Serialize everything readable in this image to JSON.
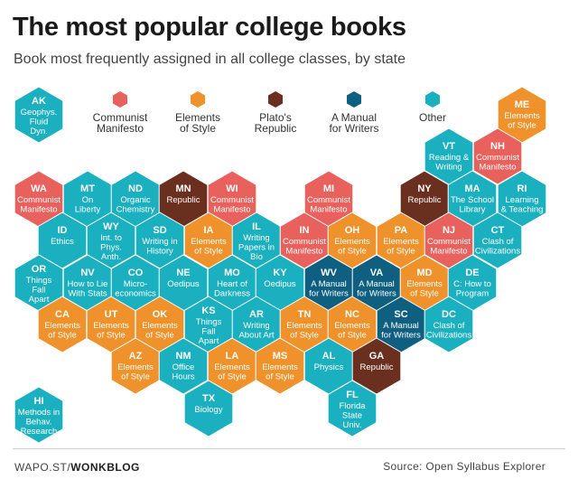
{
  "header": {
    "title": "The most popular college books",
    "subtitle": "Book most frequently assigned in all college classes, by state"
  },
  "colors": {
    "communist": "#e8615d",
    "elements": "#f0922b",
    "plato": "#6a2f1f",
    "manual": "#0f5f80",
    "other": "#1bb0bf"
  },
  "legend": [
    {
      "key": "communist",
      "label": "Communist\nManifesto"
    },
    {
      "key": "elements",
      "label": "Elements\nof Style"
    },
    {
      "key": "plato",
      "label": "Plato's\nRepublic"
    },
    {
      "key": "manual",
      "label": "A Manual\nfor Writers"
    },
    {
      "key": "other",
      "label": "Other"
    }
  ],
  "chart_data": {
    "type": "hex-tile map",
    "title": "The most popular college books",
    "subtitle": "Book most frequently assigned in all college classes, by state",
    "categories": [
      "Communist Manifesto",
      "Elements of Style",
      "Plato's Republic",
      "A Manual for Writers",
      "Other"
    ],
    "states": [
      {
        "state": "AK",
        "book": "Geophys. Fluid Dyn.",
        "category": "other"
      },
      {
        "state": "ME",
        "book": "Elements of Style",
        "category": "elements"
      },
      {
        "state": "VT",
        "book": "Reading & Writing",
        "category": "other"
      },
      {
        "state": "NH",
        "book": "Communist Manifesto",
        "category": "communist"
      },
      {
        "state": "WA",
        "book": "Communist Manifesto",
        "category": "communist"
      },
      {
        "state": "MT",
        "book": "On Liberty",
        "category": "other"
      },
      {
        "state": "ND",
        "book": "Organic Chemistry",
        "category": "other"
      },
      {
        "state": "MN",
        "book": "Republic",
        "category": "plato"
      },
      {
        "state": "WI",
        "book": "Communist Manifesto",
        "category": "communist"
      },
      {
        "state": "MI",
        "book": "Communist Manifesto",
        "category": "communist"
      },
      {
        "state": "NY",
        "book": "Republic",
        "category": "plato"
      },
      {
        "state": "MA",
        "book": "The School Library",
        "category": "other"
      },
      {
        "state": "RI",
        "book": "Learning & Teaching",
        "category": "other"
      },
      {
        "state": "ID",
        "book": "Ethics",
        "category": "other"
      },
      {
        "state": "WY",
        "book": "Int. to Phys. Anth.",
        "category": "other"
      },
      {
        "state": "SD",
        "book": "Writing in History",
        "category": "other"
      },
      {
        "state": "IA",
        "book": "Elements of Style",
        "category": "elements"
      },
      {
        "state": "IL",
        "book": "Writing Papers in Bio",
        "category": "other"
      },
      {
        "state": "IN",
        "book": "Communist Manifesto",
        "category": "communist"
      },
      {
        "state": "OH",
        "book": "Elements of Style",
        "category": "elements"
      },
      {
        "state": "PA",
        "book": "Elements of Style",
        "category": "elements"
      },
      {
        "state": "NJ",
        "book": "Communist Manifesto",
        "category": "communist"
      },
      {
        "state": "CT",
        "book": "Clash of Civilizations",
        "category": "other"
      },
      {
        "state": "OR",
        "book": "Things Fall Apart",
        "category": "other"
      },
      {
        "state": "NV",
        "book": "How to Lie With Stats",
        "category": "other"
      },
      {
        "state": "CO",
        "book": "Micro-economics",
        "category": "other"
      },
      {
        "state": "NE",
        "book": "Oedipus",
        "category": "other"
      },
      {
        "state": "MO",
        "book": "Heart of Darkness",
        "category": "other"
      },
      {
        "state": "KY",
        "book": "Oedipus",
        "category": "other"
      },
      {
        "state": "WV",
        "book": "A Manual for Writers",
        "category": "manual"
      },
      {
        "state": "VA",
        "book": "A Manual for Writers",
        "category": "manual"
      },
      {
        "state": "MD",
        "book": "Elements of Style",
        "category": "elements"
      },
      {
        "state": "DE",
        "book": "C: How to Program",
        "category": "other"
      },
      {
        "state": "CA",
        "book": "Elements of Style",
        "category": "elements"
      },
      {
        "state": "UT",
        "book": "Elements of Style",
        "category": "elements"
      },
      {
        "state": "OK",
        "book": "Elements of Style",
        "category": "elements"
      },
      {
        "state": "KS",
        "book": "Things Fall Apart",
        "category": "other"
      },
      {
        "state": "AR",
        "book": "Writing About Art",
        "category": "other"
      },
      {
        "state": "TN",
        "book": "Elements of Style",
        "category": "elements"
      },
      {
        "state": "NC",
        "book": "Elements of Style",
        "category": "elements"
      },
      {
        "state": "SC",
        "book": "A Manual for Writers",
        "category": "manual"
      },
      {
        "state": "DC",
        "book": "Clash of Civilizations",
        "category": "other"
      },
      {
        "state": "AZ",
        "book": "Elements of Style",
        "category": "elements"
      },
      {
        "state": "NM",
        "book": "Office Hours",
        "category": "other"
      },
      {
        "state": "LA",
        "book": "Elements of Style",
        "category": "elements"
      },
      {
        "state": "MS",
        "book": "Elements of Style",
        "category": "elements"
      },
      {
        "state": "AL",
        "book": "Physics",
        "category": "other"
      },
      {
        "state": "GA",
        "book": "Republic",
        "category": "plato"
      },
      {
        "state": "TX",
        "book": "Biology",
        "category": "other"
      },
      {
        "state": "FL",
        "book": "Florida State Univ.",
        "category": "other"
      },
      {
        "state": "HI",
        "book": "Methods in Behav. Research",
        "category": "other"
      }
    ]
  },
  "footer": {
    "source_prefix": "WAPO.ST/",
    "source_brand": "WONKBLOG",
    "credit": "Source: Open Syllabus Explorer"
  }
}
